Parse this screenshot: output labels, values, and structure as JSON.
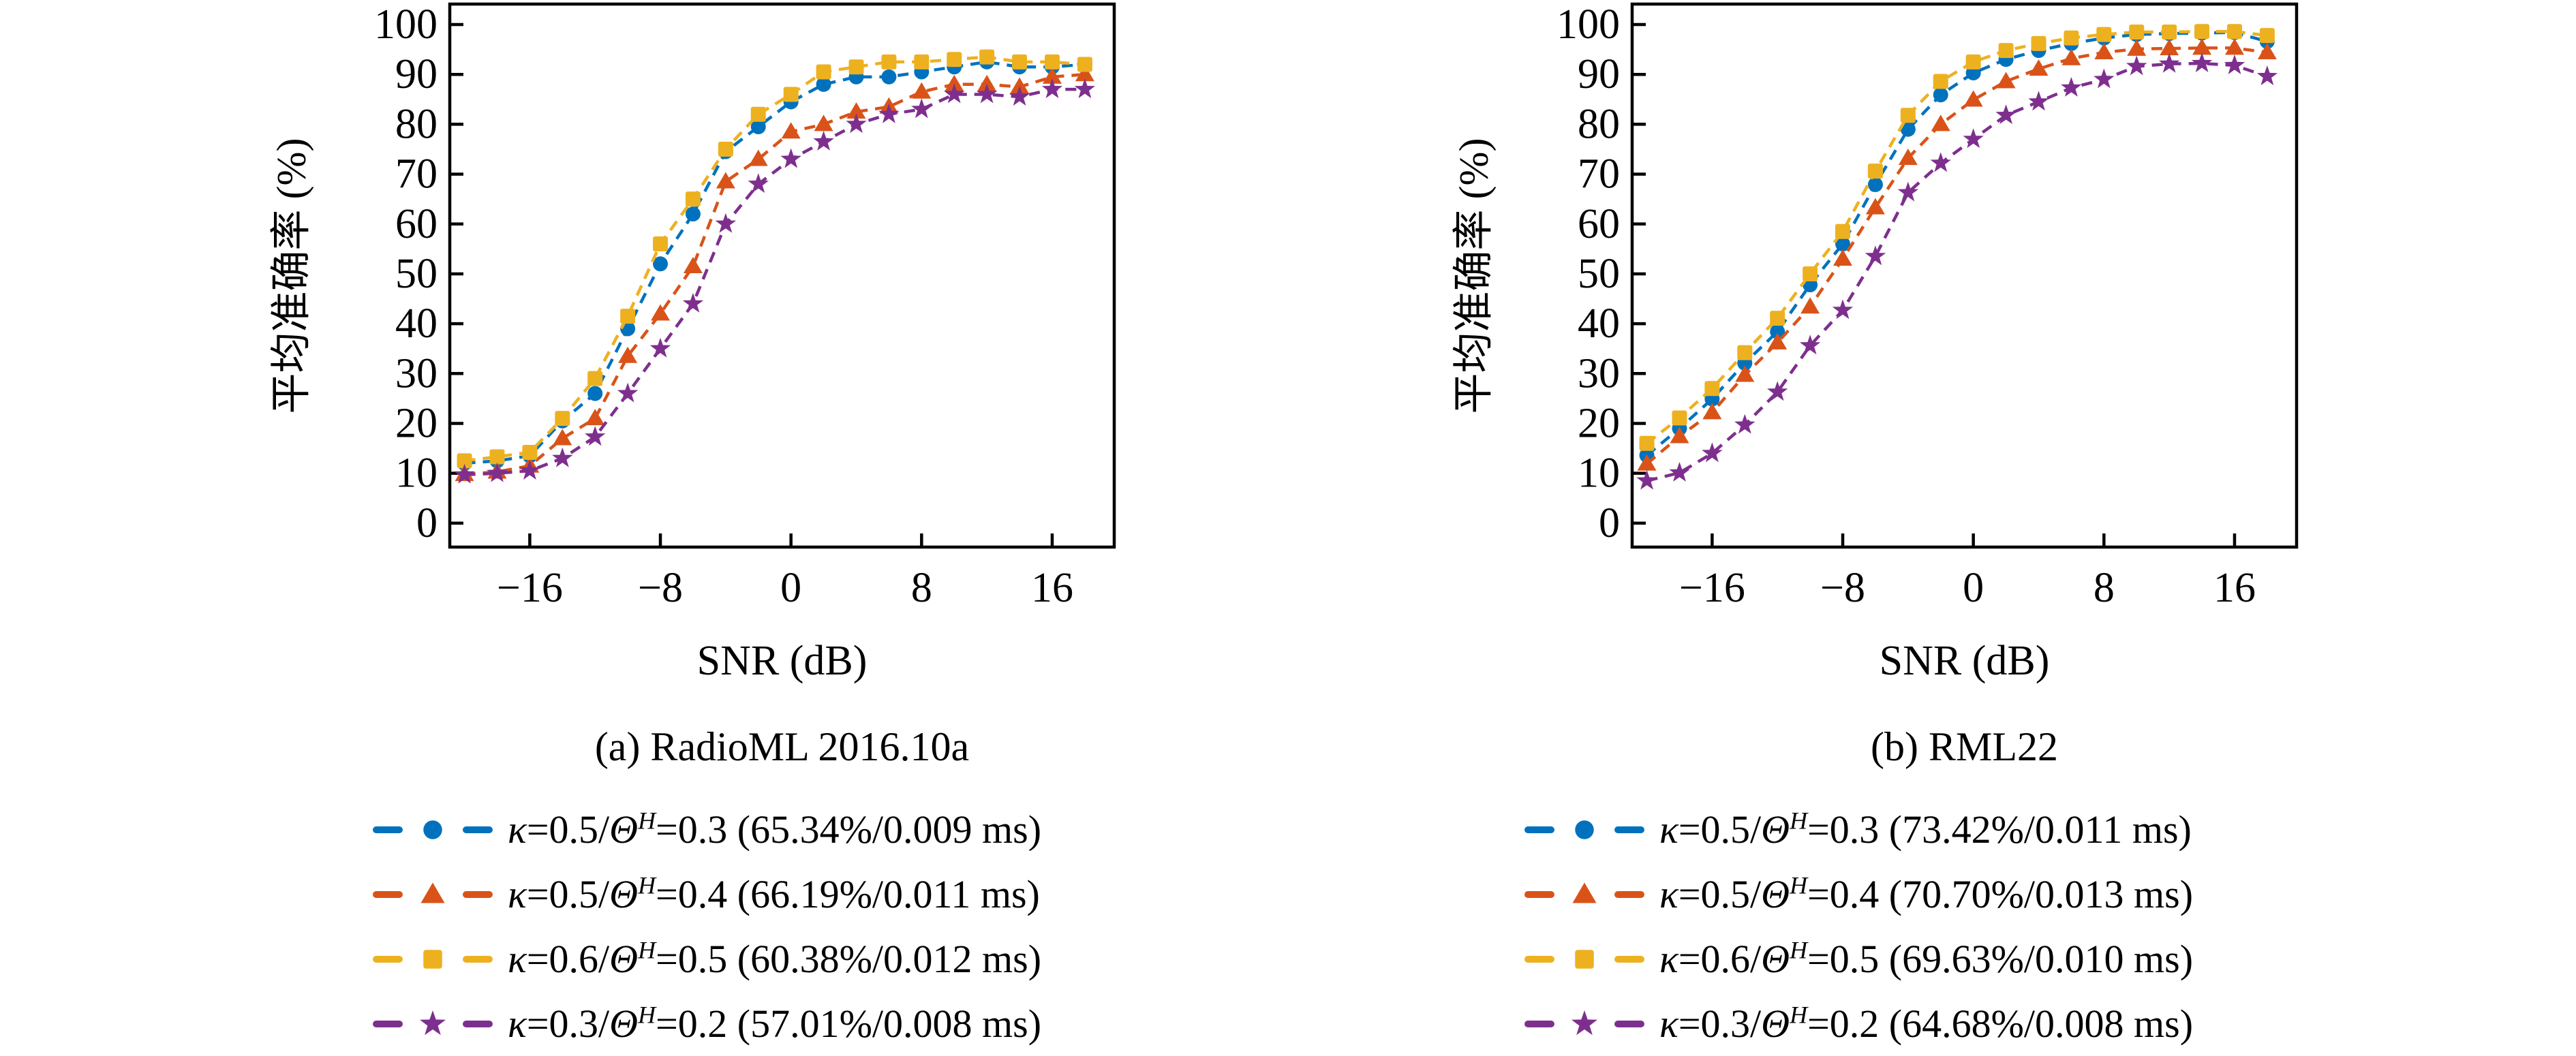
{
  "figure": {
    "background": "#ffffff",
    "axis_color": "#000000",
    "palette": [
      "#0072BD",
      "#D95319",
      "#EDB120",
      "#7E2F8E"
    ]
  },
  "chart_data": [
    {
      "type": "line",
      "caption": "(a) RadioML 2016.10a",
      "xlabel": "SNR (dB)",
      "ylabel": "平均准确率 (%)",
      "grid": false,
      "legend_position": "below",
      "line_style": "dashed",
      "xlim": [
        -20.9,
        19.8
      ],
      "ylim": [
        -4.8,
        104.1
      ],
      "x": [
        -20,
        -18,
        -16,
        -14,
        -12,
        -10,
        -8,
        -6,
        -4,
        -2,
        0,
        2,
        4,
        6,
        8,
        10,
        12,
        14,
        16,
        18
      ],
      "x_tick_values": [
        -16,
        -8,
        0,
        8,
        16
      ],
      "x_tick_labels": [
        "−16",
        "−8",
        "0",
        "8",
        "16"
      ],
      "y_ticks": [
        0,
        10,
        20,
        30,
        40,
        50,
        60,
        70,
        80,
        90,
        100
      ],
      "series": [
        {
          "name": "k05-th03",
          "color": "#0072BD",
          "marker": "circle",
          "values": [
            12.0,
            12.5,
            13.5,
            20.5,
            26.0,
            39.0,
            52.0,
            62.0,
            74.5,
            79.5,
            84.5,
            88.0,
            89.5,
            89.5,
            90.5,
            91.5,
            92.5,
            91.5,
            91.5,
            92.0
          ]
        },
        {
          "name": "k05-th04",
          "color": "#D95319",
          "marker": "triangle",
          "values": [
            9.8,
            10.3,
            11.5,
            17.0,
            21.0,
            33.5,
            42.0,
            51.5,
            68.5,
            73.0,
            78.5,
            80.0,
            82.5,
            83.5,
            86.5,
            88.0,
            88.0,
            87.5,
            89.5,
            90.0
          ]
        },
        {
          "name": "k06-th05",
          "color": "#EDB120",
          "marker": "square",
          "values": [
            12.5,
            13.3,
            14.2,
            21.0,
            29.0,
            41.5,
            56.0,
            65.0,
            75.0,
            82.0,
            86.0,
            90.5,
            91.5,
            92.5,
            92.5,
            93.0,
            93.5,
            92.5,
            92.5,
            92.0
          ]
        },
        {
          "name": "k03-th02",
          "color": "#7E2F8E",
          "marker": "star",
          "values": [
            9.7,
            10.0,
            10.5,
            13.0,
            17.3,
            26.0,
            35.0,
            44.0,
            60.0,
            68.0,
            73.0,
            76.5,
            80.0,
            82.0,
            83.0,
            86.0,
            86.0,
            85.5,
            87.0,
            87.0
          ]
        }
      ],
      "legend": [
        {
          "kappa": "κ",
          "kappa_eq": "=0.5/",
          "theta": "Θ",
          "theta_sup": "H",
          "theta_eq": "=0.3",
          "metrics": " (65.34%/0.009 ms)",
          "color": "#0072BD",
          "marker": "circle"
        },
        {
          "kappa": "κ",
          "kappa_eq": "=0.5/",
          "theta": "Θ",
          "theta_sup": "H",
          "theta_eq": "=0.4",
          "metrics": " (66.19%/0.011 ms)",
          "color": "#D95319",
          "marker": "triangle"
        },
        {
          "kappa": "κ",
          "kappa_eq": "=0.6/",
          "theta": "Θ",
          "theta_sup": "H",
          "theta_eq": "=0.5",
          "metrics": " (60.38%/0.012 ms)",
          "color": "#EDB120",
          "marker": "square"
        },
        {
          "kappa": "κ",
          "kappa_eq": "=0.3/",
          "theta": "Θ",
          "theta_sup": "H",
          "theta_eq": "=0.2",
          "metrics": " (57.01%/0.008 ms)",
          "color": "#7E2F8E",
          "marker": "star"
        }
      ]
    },
    {
      "type": "line",
      "caption": "(b) RML22",
      "xlabel": "SNR (dB)",
      "ylabel": "平均准确率 (%)",
      "grid": false,
      "legend_position": "below",
      "line_style": "dashed",
      "xlim": [
        -20.9,
        19.8
      ],
      "ylim": [
        -4.8,
        104.1
      ],
      "x": [
        -20,
        -18,
        -16,
        -14,
        -12,
        -10,
        -8,
        -6,
        -4,
        -2,
        0,
        2,
        4,
        6,
        8,
        10,
        12,
        14,
        16,
        18
      ],
      "x_tick_values": [
        -16,
        -8,
        0,
        8,
        16
      ],
      "x_tick_labels": [
        "−16",
        "−8",
        "0",
        "8",
        "16"
      ],
      "y_ticks": [
        0,
        10,
        20,
        30,
        40,
        50,
        60,
        70,
        80,
        90,
        100
      ],
      "series": [
        {
          "name": "k05-th03",
          "color": "#0072BD",
          "marker": "circle",
          "values": [
            13.6,
            19.0,
            24.9,
            32.1,
            38.4,
            47.8,
            56.0,
            67.9,
            79.0,
            85.9,
            90.3,
            93.0,
            94.8,
            96.2,
            97.3,
            98.0,
            98.2,
            98.3,
            98.4,
            96.6
          ]
        },
        {
          "name": "k05-th04",
          "color": "#D95319",
          "marker": "triangle",
          "values": [
            11.9,
            17.4,
            22.2,
            29.7,
            36.2,
            43.4,
            53.0,
            63.3,
            73.2,
            80.0,
            84.9,
            88.6,
            91.1,
            93.2,
            94.4,
            95.1,
            95.2,
            95.3,
            95.3,
            94.4
          ]
        },
        {
          "name": "k06-th05",
          "color": "#EDB120",
          "marker": "square",
          "values": [
            16.0,
            21.1,
            27.0,
            34.2,
            41.1,
            50.0,
            58.5,
            70.6,
            81.8,
            88.6,
            92.5,
            94.8,
            96.2,
            97.3,
            98.0,
            98.5,
            98.5,
            98.6,
            98.6,
            97.8
          ]
        },
        {
          "name": "k03-th02",
          "color": "#7E2F8E",
          "marker": "star",
          "values": [
            8.5,
            10.1,
            14.0,
            19.7,
            26.3,
            35.6,
            42.7,
            53.5,
            66.3,
            72.2,
            77.0,
            81.8,
            84.5,
            87.3,
            89.0,
            91.6,
            92.1,
            92.2,
            91.8,
            89.6
          ]
        }
      ],
      "legend": [
        {
          "kappa": "κ",
          "kappa_eq": "=0.5/",
          "theta": "Θ",
          "theta_sup": "H",
          "theta_eq": "=0.3",
          "metrics": " (73.42%/0.011 ms)",
          "color": "#0072BD",
          "marker": "circle"
        },
        {
          "kappa": "κ",
          "kappa_eq": "=0.5/",
          "theta": "Θ",
          "theta_sup": "H",
          "theta_eq": "=0.4",
          "metrics": " (70.70%/0.013 ms)",
          "color": "#D95319",
          "marker": "triangle"
        },
        {
          "kappa": "κ",
          "kappa_eq": "=0.6/",
          "theta": "Θ",
          "theta_sup": "H",
          "theta_eq": "=0.5",
          "metrics": " (69.63%/0.010 ms)",
          "color": "#EDB120",
          "marker": "square"
        },
        {
          "kappa": "κ",
          "kappa_eq": "=0.3/",
          "theta": "Θ",
          "theta_sup": "H",
          "theta_eq": "=0.2",
          "metrics": " (64.68%/0.008 ms)",
          "color": "#7E2F8E",
          "marker": "star"
        }
      ]
    }
  ]
}
